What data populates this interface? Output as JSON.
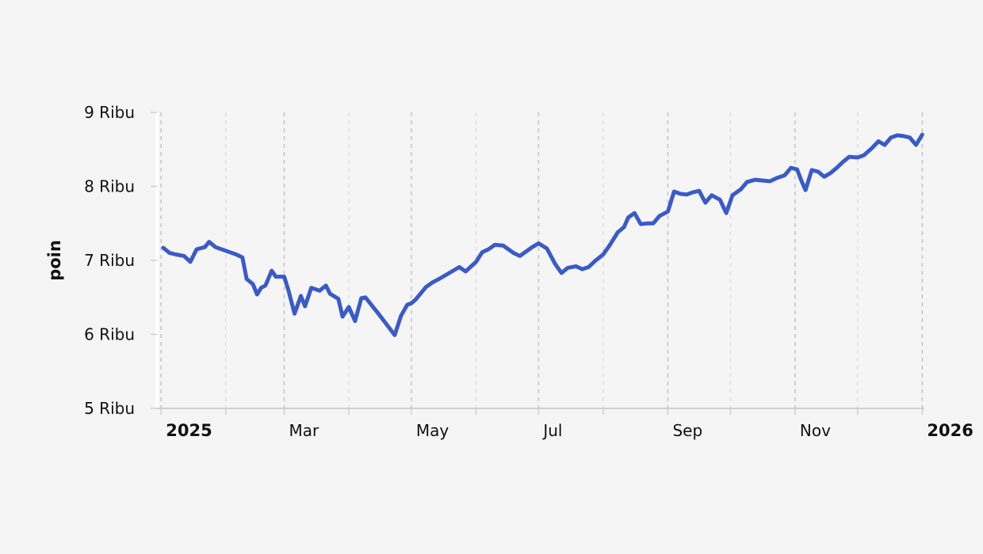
{
  "chart_data": {
    "type": "line",
    "title": "",
    "xlabel": "",
    "ylabel": "poin",
    "ylim": [
      5000,
      9000
    ],
    "xlim": [
      "2024-12-30",
      "2026-01-02"
    ],
    "grid": {
      "x": true,
      "y": false,
      "style": "dashed"
    },
    "legend": "none",
    "y_ticks": [
      {
        "value": 5000,
        "label": "5 Ribu"
      },
      {
        "value": 6000,
        "label": "6 Ribu"
      },
      {
        "value": 7000,
        "label": "7 Ribu"
      },
      {
        "value": 8000,
        "label": "8 Ribu"
      },
      {
        "value": 9000,
        "label": "9 Ribu"
      }
    ],
    "x_ticks": [
      {
        "date": "2025-01-01",
        "label": "2025",
        "bold": true
      },
      {
        "date": "2025-02-01",
        "label": ""
      },
      {
        "date": "2025-03-01",
        "label": "Mar"
      },
      {
        "date": "2025-04-01",
        "label": ""
      },
      {
        "date": "2025-05-01",
        "label": "May"
      },
      {
        "date": "2025-06-01",
        "label": ""
      },
      {
        "date": "2025-07-01",
        "label": "Jul"
      },
      {
        "date": "2025-08-01",
        "label": ""
      },
      {
        "date": "2025-09-01",
        "label": "Sep"
      },
      {
        "date": "2025-10-01",
        "label": ""
      },
      {
        "date": "2025-11-01",
        "label": "Nov"
      },
      {
        "date": "2025-12-01",
        "label": ""
      },
      {
        "date": "2026-01-01",
        "label": "2026",
        "bold": true
      }
    ],
    "series": [
      {
        "color": "#3a5bc7",
        "points": [
          [
            "2025-01-02",
            7170
          ],
          [
            "2025-01-05",
            7100
          ],
          [
            "2025-01-08",
            7080
          ],
          [
            "2025-01-12",
            7060
          ],
          [
            "2025-01-15",
            6980
          ],
          [
            "2025-01-18",
            7150
          ],
          [
            "2025-01-22",
            7180
          ],
          [
            "2025-01-24",
            7250
          ],
          [
            "2025-01-27",
            7180
          ],
          [
            "2025-02-02",
            7120
          ],
          [
            "2025-02-06",
            7080
          ],
          [
            "2025-02-09",
            7040
          ],
          [
            "2025-02-11",
            6750
          ],
          [
            "2025-02-14",
            6680
          ],
          [
            "2025-02-16",
            6540
          ],
          [
            "2025-02-18",
            6630
          ],
          [
            "2025-02-20",
            6660
          ],
          [
            "2025-02-23",
            6860
          ],
          [
            "2025-02-25",
            6780
          ],
          [
            "2025-03-01",
            6780
          ],
          [
            "2025-03-03",
            6600
          ],
          [
            "2025-03-06",
            6280
          ],
          [
            "2025-03-09",
            6520
          ],
          [
            "2025-03-11",
            6380
          ],
          [
            "2025-03-14",
            6630
          ],
          [
            "2025-03-18",
            6590
          ],
          [
            "2025-03-21",
            6660
          ],
          [
            "2025-03-23",
            6550
          ],
          [
            "2025-03-27",
            6480
          ],
          [
            "2025-03-29",
            6240
          ],
          [
            "2025-04-01",
            6370
          ],
          [
            "2025-04-04",
            6180
          ],
          [
            "2025-04-07",
            6490
          ],
          [
            "2025-04-09",
            6500
          ],
          [
            "2025-04-16",
            6250
          ],
          [
            "2025-04-23",
            5990
          ],
          [
            "2025-04-26",
            6250
          ],
          [
            "2025-04-29",
            6400
          ],
          [
            "2025-05-01",
            6420
          ],
          [
            "2025-05-03",
            6470
          ],
          [
            "2025-05-08",
            6640
          ],
          [
            "2025-05-11",
            6700
          ],
          [
            "2025-05-15",
            6760
          ],
          [
            "2025-05-21",
            6860
          ],
          [
            "2025-05-24",
            6910
          ],
          [
            "2025-05-27",
            6850
          ],
          [
            "2025-06-01",
            6980
          ],
          [
            "2025-06-04",
            7110
          ],
          [
            "2025-06-07",
            7150
          ],
          [
            "2025-06-10",
            7210
          ],
          [
            "2025-06-14",
            7200
          ],
          [
            "2025-06-19",
            7100
          ],
          [
            "2025-06-22",
            7060
          ],
          [
            "2025-06-25",
            7120
          ],
          [
            "2025-06-28",
            7180
          ],
          [
            "2025-07-01",
            7230
          ],
          [
            "2025-07-05",
            7160
          ],
          [
            "2025-07-09",
            6950
          ],
          [
            "2025-07-12",
            6830
          ],
          [
            "2025-07-15",
            6900
          ],
          [
            "2025-07-19",
            6920
          ],
          [
            "2025-07-22",
            6880
          ],
          [
            "2025-07-25",
            6910
          ],
          [
            "2025-07-28",
            6990
          ],
          [
            "2025-08-01",
            7080
          ],
          [
            "2025-08-04",
            7200
          ],
          [
            "2025-08-08",
            7380
          ],
          [
            "2025-08-11",
            7450
          ],
          [
            "2025-08-13",
            7580
          ],
          [
            "2025-08-16",
            7640
          ],
          [
            "2025-08-19",
            7490
          ],
          [
            "2025-08-22",
            7500
          ],
          [
            "2025-08-25",
            7500
          ],
          [
            "2025-08-28",
            7600
          ],
          [
            "2025-09-01",
            7660
          ],
          [
            "2025-09-04",
            7930
          ],
          [
            "2025-09-07",
            7900
          ],
          [
            "2025-09-10",
            7890
          ],
          [
            "2025-09-13",
            7920
          ],
          [
            "2025-09-16",
            7940
          ],
          [
            "2025-09-19",
            7780
          ],
          [
            "2025-09-22",
            7880
          ],
          [
            "2025-09-26",
            7820
          ],
          [
            "2025-09-29",
            7640
          ],
          [
            "2025-10-02",
            7880
          ],
          [
            "2025-10-06",
            7960
          ],
          [
            "2025-10-09",
            8060
          ],
          [
            "2025-10-13",
            8090
          ],
          [
            "2025-10-16",
            8080
          ],
          [
            "2025-10-20",
            8070
          ],
          [
            "2025-10-23",
            8110
          ],
          [
            "2025-10-27",
            8150
          ],
          [
            "2025-10-30",
            8250
          ],
          [
            "2025-11-02",
            8230
          ],
          [
            "2025-11-04",
            8080
          ],
          [
            "2025-11-06",
            7950
          ],
          [
            "2025-11-09",
            8220
          ],
          [
            "2025-11-12",
            8200
          ],
          [
            "2025-11-15",
            8130
          ],
          [
            "2025-11-18",
            8180
          ],
          [
            "2025-11-21",
            8250
          ],
          [
            "2025-11-24",
            8330
          ],
          [
            "2025-11-27",
            8400
          ],
          [
            "2025-12-01",
            8390
          ],
          [
            "2025-12-04",
            8420
          ],
          [
            "2025-12-08",
            8520
          ],
          [
            "2025-12-11",
            8610
          ],
          [
            "2025-12-14",
            8560
          ],
          [
            "2025-12-17",
            8660
          ],
          [
            "2025-12-20",
            8690
          ],
          [
            "2025-12-23",
            8680
          ],
          [
            "2025-12-26",
            8660
          ],
          [
            "2025-12-29",
            8560
          ],
          [
            "2026-01-01",
            8700
          ]
        ]
      }
    ]
  }
}
